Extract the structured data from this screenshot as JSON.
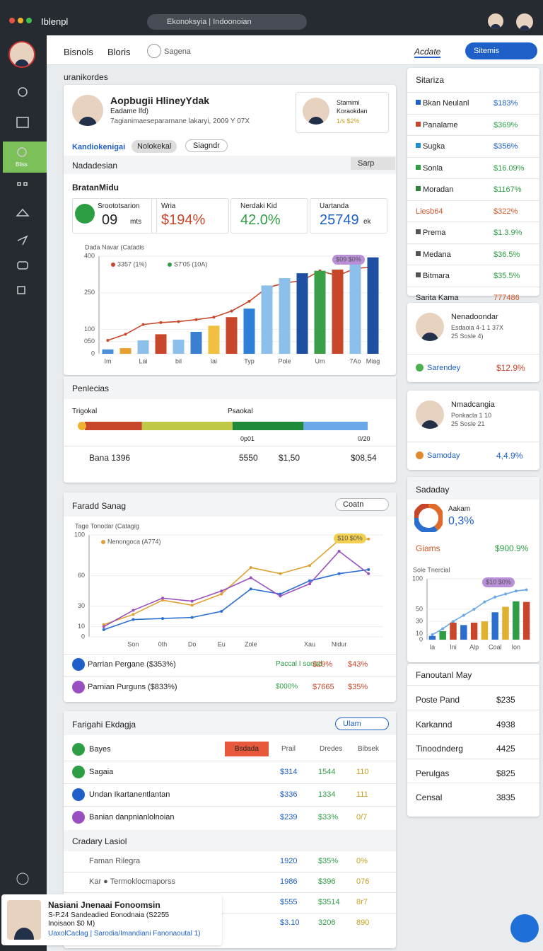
{
  "topbar": {
    "app": "Iblenpl",
    "search": "Ekonoksyia | Indoonoian"
  },
  "header": {
    "tabs": [
      "Bisnols",
      "Bloris"
    ],
    "search": "Sagena",
    "menu": "Acdate",
    "button": "Sitemis"
  },
  "sidebar": {
    "active": "Bilss"
  },
  "section_label": "uranikordes",
  "profile": {
    "name": "Aopbugii HlineyYdak",
    "role": "Eadame lfd)",
    "desc": "7agianimaesepararnane lakaryi, 2009 Y 07X",
    "mini": {
      "name": "Stamimi",
      "sub": "Koraokdan",
      "stat": "1/s $2%"
    }
  },
  "tabs": [
    "Kandiokenigai",
    "Nolokekal",
    "Siagndr"
  ],
  "filter": {
    "label": "Nadadesian",
    "select": "Sarp"
  },
  "stats": {
    "title": "BratanMidu",
    "kpis": [
      {
        "label": "Sroototsarion",
        "value": "09",
        "unit": "mts"
      },
      {
        "label": "Wria",
        "value": "$194%"
      },
      {
        "label": "Nerdaki Kid",
        "value": "42.0%"
      },
      {
        "label": "Uartanda",
        "value": "25749",
        "unit": "ek"
      }
    ]
  },
  "revenue_chart": {
    "type": "bar",
    "title": "Dada Navar (Catadis",
    "annotation": "$09 $0%",
    "categories": [
      "Im",
      null,
      "Lai",
      null,
      "bil",
      null,
      "lai",
      null,
      "Typ",
      null,
      "Pole",
      null,
      "Um",
      null,
      "7Ao",
      "Miag"
    ],
    "series": [
      {
        "name": "3357 (1%)",
        "color": "#c8462a",
        "values": [
          55,
          80,
          120,
          128,
          132,
          140,
          150,
          175,
          215,
          270,
          290,
          300,
          340,
          320,
          350,
          355
        ]
      },
      {
        "name": "S7'05 (10A)",
        "color": "#2e9e45",
        "values": [
          18,
          23,
          55,
          80,
          58,
          90,
          115,
          150,
          185,
          280,
          310,
          330,
          340,
          345,
          390,
          395
        ],
        "colors": [
          "#4a8fd8",
          "#e8a030",
          "#8cc0ea",
          "#c8462a",
          "#8cc0ea",
          "#3a7fd0",
          "#f0c040",
          "#c8462a",
          "#2e7fd8",
          "#8cc0ea",
          "#8cc0ea",
          "#1f4fa0",
          "#3aa048",
          "#c8462a",
          "#8cc0ea",
          "#1f4fa0"
        ]
      }
    ],
    "ylim": [
      0,
      400
    ],
    "yticks": [
      0,
      {
        "value": 50,
        "label": "050"
      },
      100,
      250,
      400
    ]
  },
  "payments": {
    "title": "Penlecias",
    "left": "Trigokal",
    "right": "Psaokal",
    "segments": [
      {
        "color": "#c8462a",
        "value": 82
      },
      {
        "color": "#c0c848",
        "value": 130
      },
      {
        "color": "#1e8a3a",
        "value": 102
      },
      {
        "color": "#6aa8e8",
        "value": 92
      }
    ],
    "marks": [
      "0p01",
      "0/20"
    ],
    "row": [
      "Bana 1396",
      "5550",
      "$1,50",
      "$08,54"
    ]
  },
  "trend": {
    "title": "Faradd Sanag",
    "select": "Coatn",
    "chart": {
      "type": "line",
      "title": "Tage Tonodar (Catagig",
      "annotation": "$10 $0%",
      "categories": [
        null,
        "Son",
        "0th",
        "Do",
        "Eu",
        "Zole",
        null,
        "Xau",
        "Nidur",
        null
      ],
      "series": [
        {
          "color": "#2a6fd0",
          "values": [
            7,
            17,
            18,
            19,
            25,
            47,
            42,
            55,
            62,
            66
          ]
        },
        {
          "name": "Nenongoca (A774)",
          "color": "#e0a030",
          "values": [
            12,
            22,
            36,
            31,
            42,
            68,
            62,
            70,
            95,
            96
          ]
        },
        {
          "color": "#9a4fc0",
          "values": [
            10,
            26,
            38,
            35,
            45,
            58,
            40,
            52,
            84,
            62
          ]
        }
      ],
      "ylim": [
        0,
        100
      ],
      "yticks": [
        0,
        10,
        30,
        60,
        100
      ]
    },
    "rows": [
      [
        "Parrian Pergane ($353%)",
        "Paccal I sonad",
        "$29%",
        "$43%"
      ],
      [
        "Parnian Purguns ($833%)",
        "$000%",
        "$7665",
        "$35%"
      ]
    ]
  },
  "table": {
    "title": "Farigahi Ekdagja",
    "select": "Ulam",
    "badge": "Bsdada",
    "columns": [
      "Prail",
      "Dredes",
      "Bibsek"
    ],
    "rows": [
      [
        "Bayes",
        "",
        "",
        ""
      ],
      [
        "Sagaia",
        "$314",
        "1544",
        "110"
      ],
      [
        "Undan Ikartanentlantan",
        "$336",
        "1334",
        "111"
      ],
      [
        "Banian danpnianlolnoian",
        "$239",
        "$33%",
        "0/7"
      ]
    ],
    "section": "Cradary Lasiol",
    "rows2": [
      [
        "Faman Rilegra",
        "1920",
        "$35%",
        "0%"
      ],
      [
        "Kar ● Termoklocmaporss",
        "1986",
        "$396",
        "076"
      ],
      [
        "",
        "$555",
        "$3514",
        "8r7"
      ],
      [
        "",
        "$3.10",
        "3206",
        "890"
      ]
    ]
  },
  "popup": {
    "title": "Nasiani Jnenaai Fonoomsin",
    "line1": "S-P.24 Sandeadied Eonodnaia (S2255",
    "line2": "Inoisaon $0 M)",
    "line3": "UaxolCaclag | Sarodia/Imandiani Fanonaoutal 1)"
  },
  "summary": {
    "title": "Sitariza",
    "items": [
      [
        "Bkan Neulanl",
        "$183%"
      ],
      [
        "Panalame",
        "$369%"
      ],
      [
        "Sugka",
        "$356%"
      ],
      [
        "Sonla",
        "$16.09%"
      ],
      [
        "Moradan",
        "$1167%"
      ],
      [
        "Liesb64",
        "$322%"
      ],
      [
        "Prema",
        "$1.3.9%"
      ],
      [
        "Medana",
        "$36.5%"
      ],
      [
        "Bitmara",
        "$35.5%"
      ],
      [
        "Sarita Kama",
        "777486"
      ]
    ]
  },
  "people": [
    {
      "name": "Nenadoondar",
      "l1": "Esdaoia 4-1 1 37X",
      "l2": "25 Sosle 4)",
      "tag": "Sarendey",
      "value": "$12.9%"
    },
    {
      "name": "Nmadcangia",
      "l1": "Ponkacla 1 10",
      "l2": "25 Sosle 21",
      "tag": "Samoday",
      "value": "4,4.9%"
    }
  ],
  "side": {
    "title": "Sadaday",
    "label": "Aakam",
    "value": "0,3%",
    "row": [
      "Giams",
      "$900.9%"
    ],
    "donut": {
      "values": [
        40,
        35,
        25
      ],
      "colors": [
        "#e06a2a",
        "#2a6fd0",
        "#c8462a"
      ]
    },
    "chart": {
      "type": "bar",
      "title": "Sole Tnercial",
      "annotation": "$10 $0%",
      "categories": [
        "Ia",
        null,
        "Ini",
        null,
        "Alp",
        null,
        "Coal",
        null,
        "Ion",
        null
      ],
      "series": [
        {
          "color": "#6aa8e8",
          "values": [
            8,
            18,
            30,
            40,
            50,
            62,
            70,
            75,
            80,
            82
          ]
        },
        {
          "color": "#2e9e45",
          "values": [
            6,
            14,
            28,
            24,
            28,
            30,
            45,
            54,
            63,
            62
          ],
          "colors": [
            "#2a6fd0",
            "#2e9e45",
            "#c8462a",
            "#2a6fd0",
            "#c8462a",
            "#e0b030",
            "#2a6fd0",
            "#e0b030",
            "#2e9e45",
            "#c8462a"
          ]
        }
      ],
      "ylim": [
        0,
        100
      ],
      "yticks": [
        0,
        10,
        30,
        50,
        100
      ]
    }
  },
  "funds": {
    "title": "Fanoutanl May",
    "items": [
      [
        "Poste Pand",
        "$235"
      ],
      [
        "Karkannd",
        "4938"
      ],
      [
        "Tinoodnderg",
        "4425"
      ],
      [
        "Perulgas",
        "$825"
      ],
      [
        "Censal",
        "3835"
      ]
    ]
  }
}
